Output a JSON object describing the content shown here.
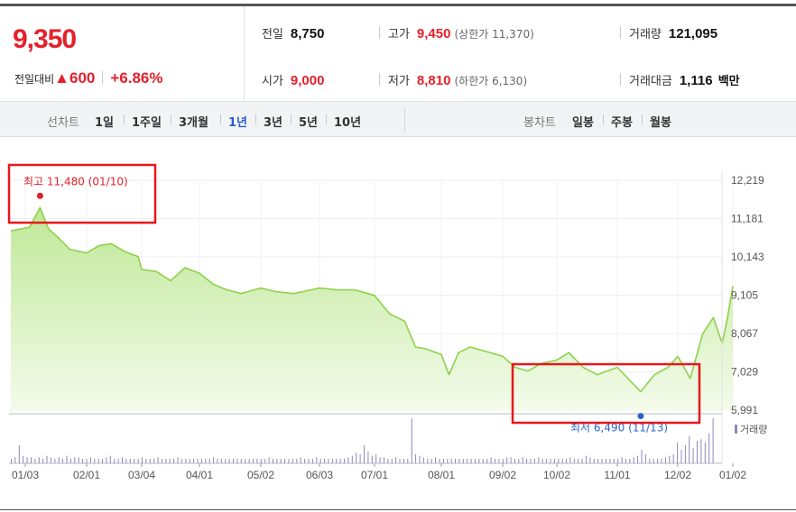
{
  "quote": {
    "price": "9,350",
    "diff_label": "전일대비",
    "diff_arrow": "▲",
    "diff_value": "600",
    "diff_rate": "+6.86%",
    "prev_close_label": "전일",
    "prev_close": "8,750",
    "high_label": "고가",
    "high": "9,450",
    "upper_limit": "(상한가 11,370)",
    "volume_label": "거래량",
    "volume": "121,095",
    "open_label": "시가",
    "open": "9,000",
    "low_label": "저가",
    "low": "8,810",
    "lower_limit": "(하한가 6,130)",
    "amount_label": "거래대금",
    "amount": "1,116",
    "amount_unit": "백만",
    "colors": {
      "up": "#e5202c",
      "selected_tab": "#2b5cc8"
    }
  },
  "tabs": {
    "line_label": "선차트",
    "line_periods": [
      "1일",
      "1주일",
      "3개월",
      "1년",
      "3년",
      "5년",
      "10년"
    ],
    "selected": "1년",
    "candle_label": "봉차트",
    "candle_periods": [
      "일봉",
      "주봉",
      "월봉"
    ]
  },
  "chart_data": {
    "type": "area",
    "x_ticks": [
      "01/03",
      "02/01",
      "03/04",
      "04/01",
      "05/02",
      "06/03",
      "07/01",
      "08/01",
      "09/02",
      "10/02",
      "11/01",
      "12/02",
      "01/02"
    ],
    "y_ticks": [
      12219,
      11181,
      10143,
      9105,
      8067,
      7029,
      5991
    ],
    "y_tick_labels": [
      "12,219",
      "11,181",
      "10,143",
      "9,105",
      "8,067",
      "7,029",
      "5,991"
    ],
    "ylim": [
      5991,
      12219
    ],
    "price_series": [
      [
        "01/03",
        10850
      ],
      [
        "01/05",
        10950
      ],
      [
        "01/10",
        11480
      ],
      [
        "01/14",
        10900
      ],
      [
        "01/18",
        10700
      ],
      [
        "01/24",
        10350
      ],
      [
        "02/01",
        10250
      ],
      [
        "02/08",
        10450
      ],
      [
        "02/15",
        10500
      ],
      [
        "02/22",
        10300
      ],
      [
        "03/02",
        10150
      ],
      [
        "03/04",
        9800
      ],
      [
        "03/11",
        9750
      ],
      [
        "03/18",
        9500
      ],
      [
        "03/25",
        9850
      ],
      [
        "04/01",
        9700
      ],
      [
        "04/08",
        9400
      ],
      [
        "04/15",
        9250
      ],
      [
        "04/22",
        9150
      ],
      [
        "05/02",
        9300
      ],
      [
        "05/10",
        9200
      ],
      [
        "05/20",
        9150
      ],
      [
        "06/03",
        9300
      ],
      [
        "06/12",
        9250
      ],
      [
        "06/21",
        9250
      ],
      [
        "07/01",
        9100
      ],
      [
        "07/08",
        8600
      ],
      [
        "07/15",
        8400
      ],
      [
        "07/20",
        7700
      ],
      [
        "07/25",
        7650
      ],
      [
        "08/01",
        7500
      ],
      [
        "08/05",
        6950
      ],
      [
        "08/10",
        7550
      ],
      [
        "08/16",
        7700
      ],
      [
        "08/23",
        7600
      ],
      [
        "09/02",
        7450
      ],
      [
        "09/09",
        7150
      ],
      [
        "09/16",
        7050
      ],
      [
        "09/23",
        7250
      ],
      [
        "10/02",
        7350
      ],
      [
        "10/08",
        7550
      ],
      [
        "10/15",
        7150
      ],
      [
        "10/22",
        6950
      ],
      [
        "11/01",
        7150
      ],
      [
        "11/13",
        6490
      ],
      [
        "11/20",
        6950
      ],
      [
        "11/27",
        7150
      ],
      [
        "12/02",
        7450
      ],
      [
        "12/09",
        6850
      ],
      [
        "12/16",
        8050
      ],
      [
        "12/22",
        8500
      ],
      [
        "12/27",
        7800
      ],
      [
        "12/30",
        8500
      ],
      [
        "01/02",
        9350
      ]
    ],
    "max_annotation": "최고 11,480 (01/10)",
    "min_annotation": "최저 6,490 (11/13)",
    "volume_label": "거래량",
    "volume_series": [
      3,
      4,
      12,
      5,
      4,
      4,
      3,
      4,
      3,
      5,
      4,
      3,
      4,
      3,
      5,
      3,
      4,
      4,
      3,
      3,
      4,
      3,
      3,
      3,
      4,
      5,
      3,
      3,
      4,
      3,
      3,
      3,
      3,
      4,
      3,
      3,
      3,
      4,
      3,
      3,
      3,
      3,
      4,
      3,
      3,
      3,
      3,
      3,
      3,
      3,
      3,
      4,
      3,
      3,
      3,
      3,
      3,
      3,
      3,
      3,
      3,
      3,
      3,
      3,
      3,
      4,
      3,
      3,
      3,
      3,
      3,
      3,
      3,
      4,
      3,
      3,
      3,
      4,
      3,
      3,
      3,
      3,
      3,
      3,
      3,
      4,
      5,
      7,
      6,
      12,
      8,
      5,
      6,
      4,
      4,
      3,
      3,
      4,
      3,
      3,
      3,
      30,
      6,
      5,
      4,
      3,
      3,
      4,
      3,
      3,
      3,
      3,
      3,
      3,
      3,
      3,
      3,
      3,
      3,
      3,
      3,
      4,
      3,
      3,
      3,
      4,
      4,
      3,
      3,
      4,
      3,
      3,
      3,
      4,
      3,
      3,
      3,
      3,
      3,
      3,
      3,
      4,
      3,
      3,
      3,
      5,
      4,
      3,
      3,
      3,
      3,
      3,
      3,
      3,
      4,
      3,
      3,
      4,
      5,
      9,
      6,
      3,
      3,
      3,
      3,
      4,
      5,
      6,
      14,
      9,
      12,
      18,
      10,
      15,
      16,
      14,
      20,
      30
    ],
    "colors": {
      "line": "#8ed14b",
      "fill_top": "#bfe897",
      "fill_bottom": "#f3fbea",
      "max_marker": "#e5202c",
      "min_marker": "#2a66c8",
      "highlight_box": "#e8161d",
      "volume_bar": "#8d87bf"
    }
  }
}
